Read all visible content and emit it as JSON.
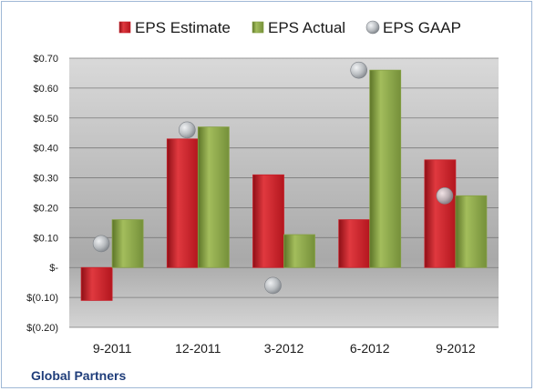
{
  "company": "Global Partners",
  "colors": {
    "estimate": "#c8202a",
    "actual": "#86a044",
    "gaap": "#b8bcc0",
    "company_text": "#1f3d7a"
  },
  "legend": [
    {
      "key": "estimate",
      "label": "EPS Estimate"
    },
    {
      "key": "actual",
      "label": "EPS Actual"
    },
    {
      "key": "gaap",
      "label": "EPS GAAP"
    }
  ],
  "chart_data": {
    "type": "bar",
    "categories": [
      "9-2011",
      "12-2011",
      "3-2012",
      "6-2012",
      "9-2012"
    ],
    "series": [
      {
        "name": "EPS Estimate",
        "values": [
          -0.11,
          0.43,
          0.31,
          0.16,
          0.36
        ]
      },
      {
        "name": "EPS Actual",
        "values": [
          0.16,
          0.47,
          0.11,
          0.66,
          0.24
        ]
      },
      {
        "name": "EPS GAAP",
        "type": "scatter",
        "values": [
          0.08,
          0.46,
          -0.06,
          0.66,
          0.24
        ]
      }
    ],
    "ylim": [
      -0.2,
      0.7
    ],
    "yticks": [
      -0.2,
      -0.1,
      0,
      0.1,
      0.2,
      0.3,
      0.4,
      0.5,
      0.6,
      0.7
    ],
    "ytick_labels": [
      "$(0.20)",
      "$(0.10)",
      "$-",
      "$0.10",
      "$0.20",
      "$0.30",
      "$0.40",
      "$0.50",
      "$0.60",
      "$0.70"
    ],
    "grid": true,
    "legend_position": "top"
  }
}
